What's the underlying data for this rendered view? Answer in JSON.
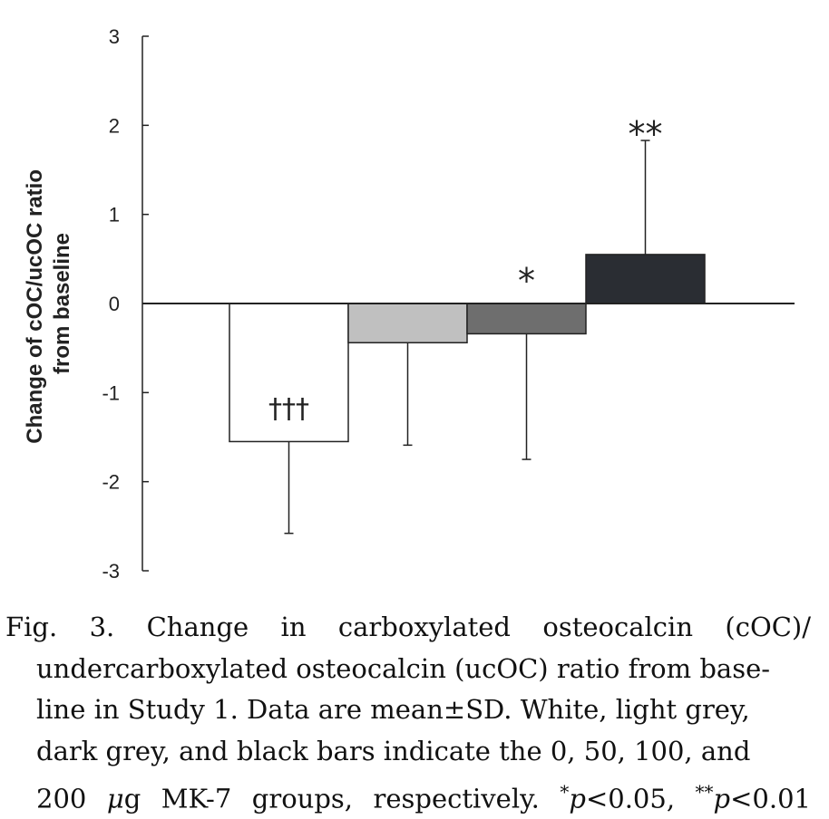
{
  "chart_data": {
    "type": "bar",
    "categories": [
      "0",
      "50",
      "100",
      "200"
    ],
    "values": [
      -1.55,
      -0.44,
      -0.34,
      0.55
    ],
    "error_plus_minus": [
      1.03,
      1.15,
      1.41,
      1.28
    ],
    "colors": [
      "#ffffff",
      "#c0c0c0",
      "#6e6e6e",
      "#2a2d33"
    ],
    "annotations": [
      "†††",
      "",
      "*",
      "**"
    ],
    "ylabel_lines": [
      "Change of cOC/ucOC ratio",
      "from baseline"
    ],
    "yticks": [
      "3",
      "2",
      "1",
      "0",
      "-1",
      "-2",
      "-3"
    ],
    "ylim": [
      -3,
      3
    ],
    "grid": false
  },
  "caption": {
    "line1": "Fig. 3.  Change in carboxylated osteocalcin (cOC)/",
    "line2": "undercarboxylated osteocalcin (ucOC) ratio from base-",
    "line3": "line in Study 1. Data are mean±SD. White, light grey,",
    "line4": "dark grey, and black bars indicate the 0, 50, 100, and",
    "line5_start": "200 ",
    "line5_mu": "μ",
    "line5_mid": "g MK-7 groups, respectively. ",
    "line5_star1": "*",
    "line5_p1": "p",
    "line5_cond1": "<0.05, ",
    "line5_star2": "**",
    "line5_p2": "p",
    "line5_cond2": "<0.01"
  }
}
